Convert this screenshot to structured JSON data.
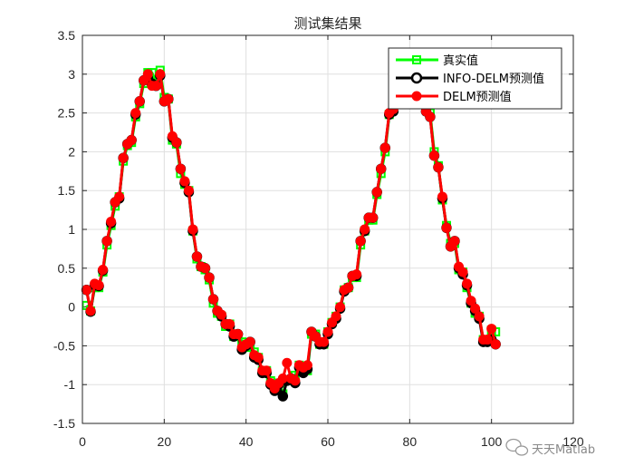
{
  "chart_data": {
    "type": "line",
    "title": "测试集结果",
    "xlabel": "",
    "ylabel": "",
    "xlim": [
      0,
      120
    ],
    "ylim": [
      -1.5,
      3.5
    ],
    "xticks": [
      0,
      20,
      40,
      60,
      80,
      100,
      120
    ],
    "yticks": [
      -1.5,
      -1,
      -0.5,
      0,
      0.5,
      1,
      1.5,
      2,
      2.5,
      3,
      3.5
    ],
    "xtick_labels": [
      "0",
      "20",
      "40",
      "60",
      "80",
      "100",
      "120"
    ],
    "ytick_labels": [
      "-1.5",
      "-1",
      "-0.5",
      "0",
      "0.5",
      "1",
      "1.5",
      "2",
      "2.5",
      "3",
      "3.5"
    ],
    "grid": true,
    "legend_position": "top-right",
    "x": [
      1,
      2,
      3,
      4,
      5,
      6,
      7,
      8,
      9,
      10,
      11,
      12,
      13,
      14,
      15,
      16,
      17,
      18,
      19,
      20,
      21,
      22,
      23,
      24,
      25,
      26,
      27,
      28,
      29,
      30,
      31,
      32,
      33,
      34,
      35,
      36,
      37,
      38,
      39,
      40,
      41,
      42,
      43,
      44,
      45,
      46,
      47,
      48,
      49,
      50,
      51,
      52,
      53,
      54,
      55,
      56,
      57,
      58,
      59,
      60,
      61,
      62,
      63,
      64,
      65,
      66,
      67,
      68,
      69,
      70,
      71,
      72,
      73,
      74,
      75,
      76,
      77,
      78,
      79,
      80,
      81,
      82,
      83,
      84,
      85,
      86,
      87,
      88,
      89,
      90,
      91,
      92,
      93,
      94,
      95,
      96,
      97,
      98,
      99,
      100,
      101
    ],
    "series": [
      {
        "name": "真实值",
        "color": "#00ff00",
        "marker": "square",
        "values": [
          0.02,
          -0.05,
          0.25,
          0.25,
          0.45,
          0.8,
          1.05,
          1.3,
          1.42,
          1.88,
          2.08,
          2.12,
          2.45,
          2.62,
          2.88,
          3.02,
          3.02,
          2.9,
          3.05,
          2.7,
          2.68,
          2.15,
          2.1,
          1.72,
          1.58,
          1.5,
          0.98,
          0.62,
          0.52,
          0.48,
          0.35,
          0.05,
          -0.08,
          -0.12,
          -0.25,
          -0.22,
          -0.38,
          -0.38,
          -0.45,
          -0.48,
          -0.52,
          -0.58,
          -0.65,
          -0.82,
          -0.82,
          -0.95,
          -1.02,
          -0.98,
          -1.12,
          -0.95,
          -0.95,
          -0.88,
          -0.75,
          -0.78,
          -0.82,
          -0.35,
          -0.35,
          -0.48,
          -0.48,
          -0.32,
          -0.2,
          -0.12,
          0.0,
          0.22,
          0.25,
          0.38,
          0.38,
          0.8,
          0.98,
          1.12,
          1.12,
          1.45,
          1.72,
          2.0,
          2.48,
          2.55,
          2.82,
          2.85,
          2.9,
          2.78,
          2.75,
          2.7,
          2.65,
          2.55,
          2.5,
          2.0,
          1.82,
          1.38,
          1.05,
          0.82,
          0.82,
          0.48,
          0.45,
          0.25,
          0.05,
          -0.08,
          -0.12,
          -0.42,
          -0.42,
          -0.3,
          -0.32
        ]
      },
      {
        "name": "INFO-DELM预测值",
        "color": "#000000",
        "marker": "circle",
        "values": [
          0.22,
          -0.06,
          0.28,
          0.27,
          0.47,
          0.85,
          1.08,
          1.35,
          1.4,
          1.92,
          2.1,
          2.15,
          2.48,
          2.65,
          2.92,
          2.95,
          2.88,
          2.85,
          2.98,
          2.65,
          2.68,
          2.18,
          2.12,
          1.78,
          1.6,
          1.48,
          0.98,
          0.65,
          0.52,
          0.5,
          0.38,
          0.1,
          -0.05,
          -0.12,
          -0.22,
          -0.25,
          -0.38,
          -0.35,
          -0.55,
          -0.5,
          -0.45,
          -0.65,
          -0.68,
          -0.85,
          -0.85,
          -1.0,
          -1.08,
          -1.0,
          -1.15,
          -0.95,
          -0.92,
          -0.98,
          -0.78,
          -0.85,
          -0.8,
          -0.32,
          -0.38,
          -0.48,
          -0.48,
          -0.35,
          -0.22,
          -0.15,
          -0.02,
          0.2,
          0.25,
          0.4,
          0.4,
          0.85,
          0.98,
          1.15,
          1.15,
          1.48,
          1.78,
          2.05,
          2.48,
          2.52,
          2.8,
          2.82,
          2.9,
          2.78,
          2.72,
          2.68,
          2.62,
          2.52,
          2.45,
          1.95,
          1.8,
          1.4,
          1.02,
          0.78,
          0.85,
          0.5,
          0.42,
          0.28,
          0.05,
          -0.05,
          -0.15,
          -0.45,
          -0.45,
          -0.42,
          -0.48
        ]
      },
      {
        "name": "DELM预测值",
        "color": "#ff0000",
        "marker": "circle",
        "values": [
          0.22,
          -0.05,
          0.3,
          0.28,
          0.48,
          0.85,
          1.1,
          1.35,
          1.42,
          1.92,
          2.1,
          2.15,
          2.5,
          2.65,
          2.92,
          3.0,
          2.85,
          2.85,
          3.0,
          2.65,
          2.68,
          2.2,
          2.12,
          1.78,
          1.62,
          1.5,
          1.0,
          0.65,
          0.52,
          0.5,
          0.38,
          0.1,
          -0.05,
          -0.1,
          -0.22,
          -0.22,
          -0.35,
          -0.35,
          -0.52,
          -0.48,
          -0.45,
          -0.62,
          -0.65,
          -0.82,
          -0.82,
          -0.98,
          -1.05,
          -0.98,
          -0.92,
          -0.72,
          -0.92,
          -0.95,
          -0.75,
          -0.78,
          -0.75,
          -0.32,
          -0.38,
          -0.45,
          -0.45,
          -0.32,
          -0.2,
          -0.12,
          0.0,
          0.22,
          0.25,
          0.4,
          0.42,
          0.85,
          1.0,
          1.15,
          1.15,
          1.48,
          1.78,
          2.05,
          2.5,
          2.55,
          2.82,
          2.82,
          2.92,
          2.78,
          2.72,
          2.68,
          2.62,
          2.52,
          2.45,
          1.95,
          1.8,
          1.42,
          1.02,
          0.78,
          0.85,
          0.52,
          0.45,
          0.3,
          0.08,
          -0.02,
          -0.12,
          -0.42,
          -0.42,
          -0.28,
          -0.48
        ]
      }
    ]
  },
  "watermark": {
    "icon": "wechat-icon",
    "text": "天天Matlab"
  }
}
